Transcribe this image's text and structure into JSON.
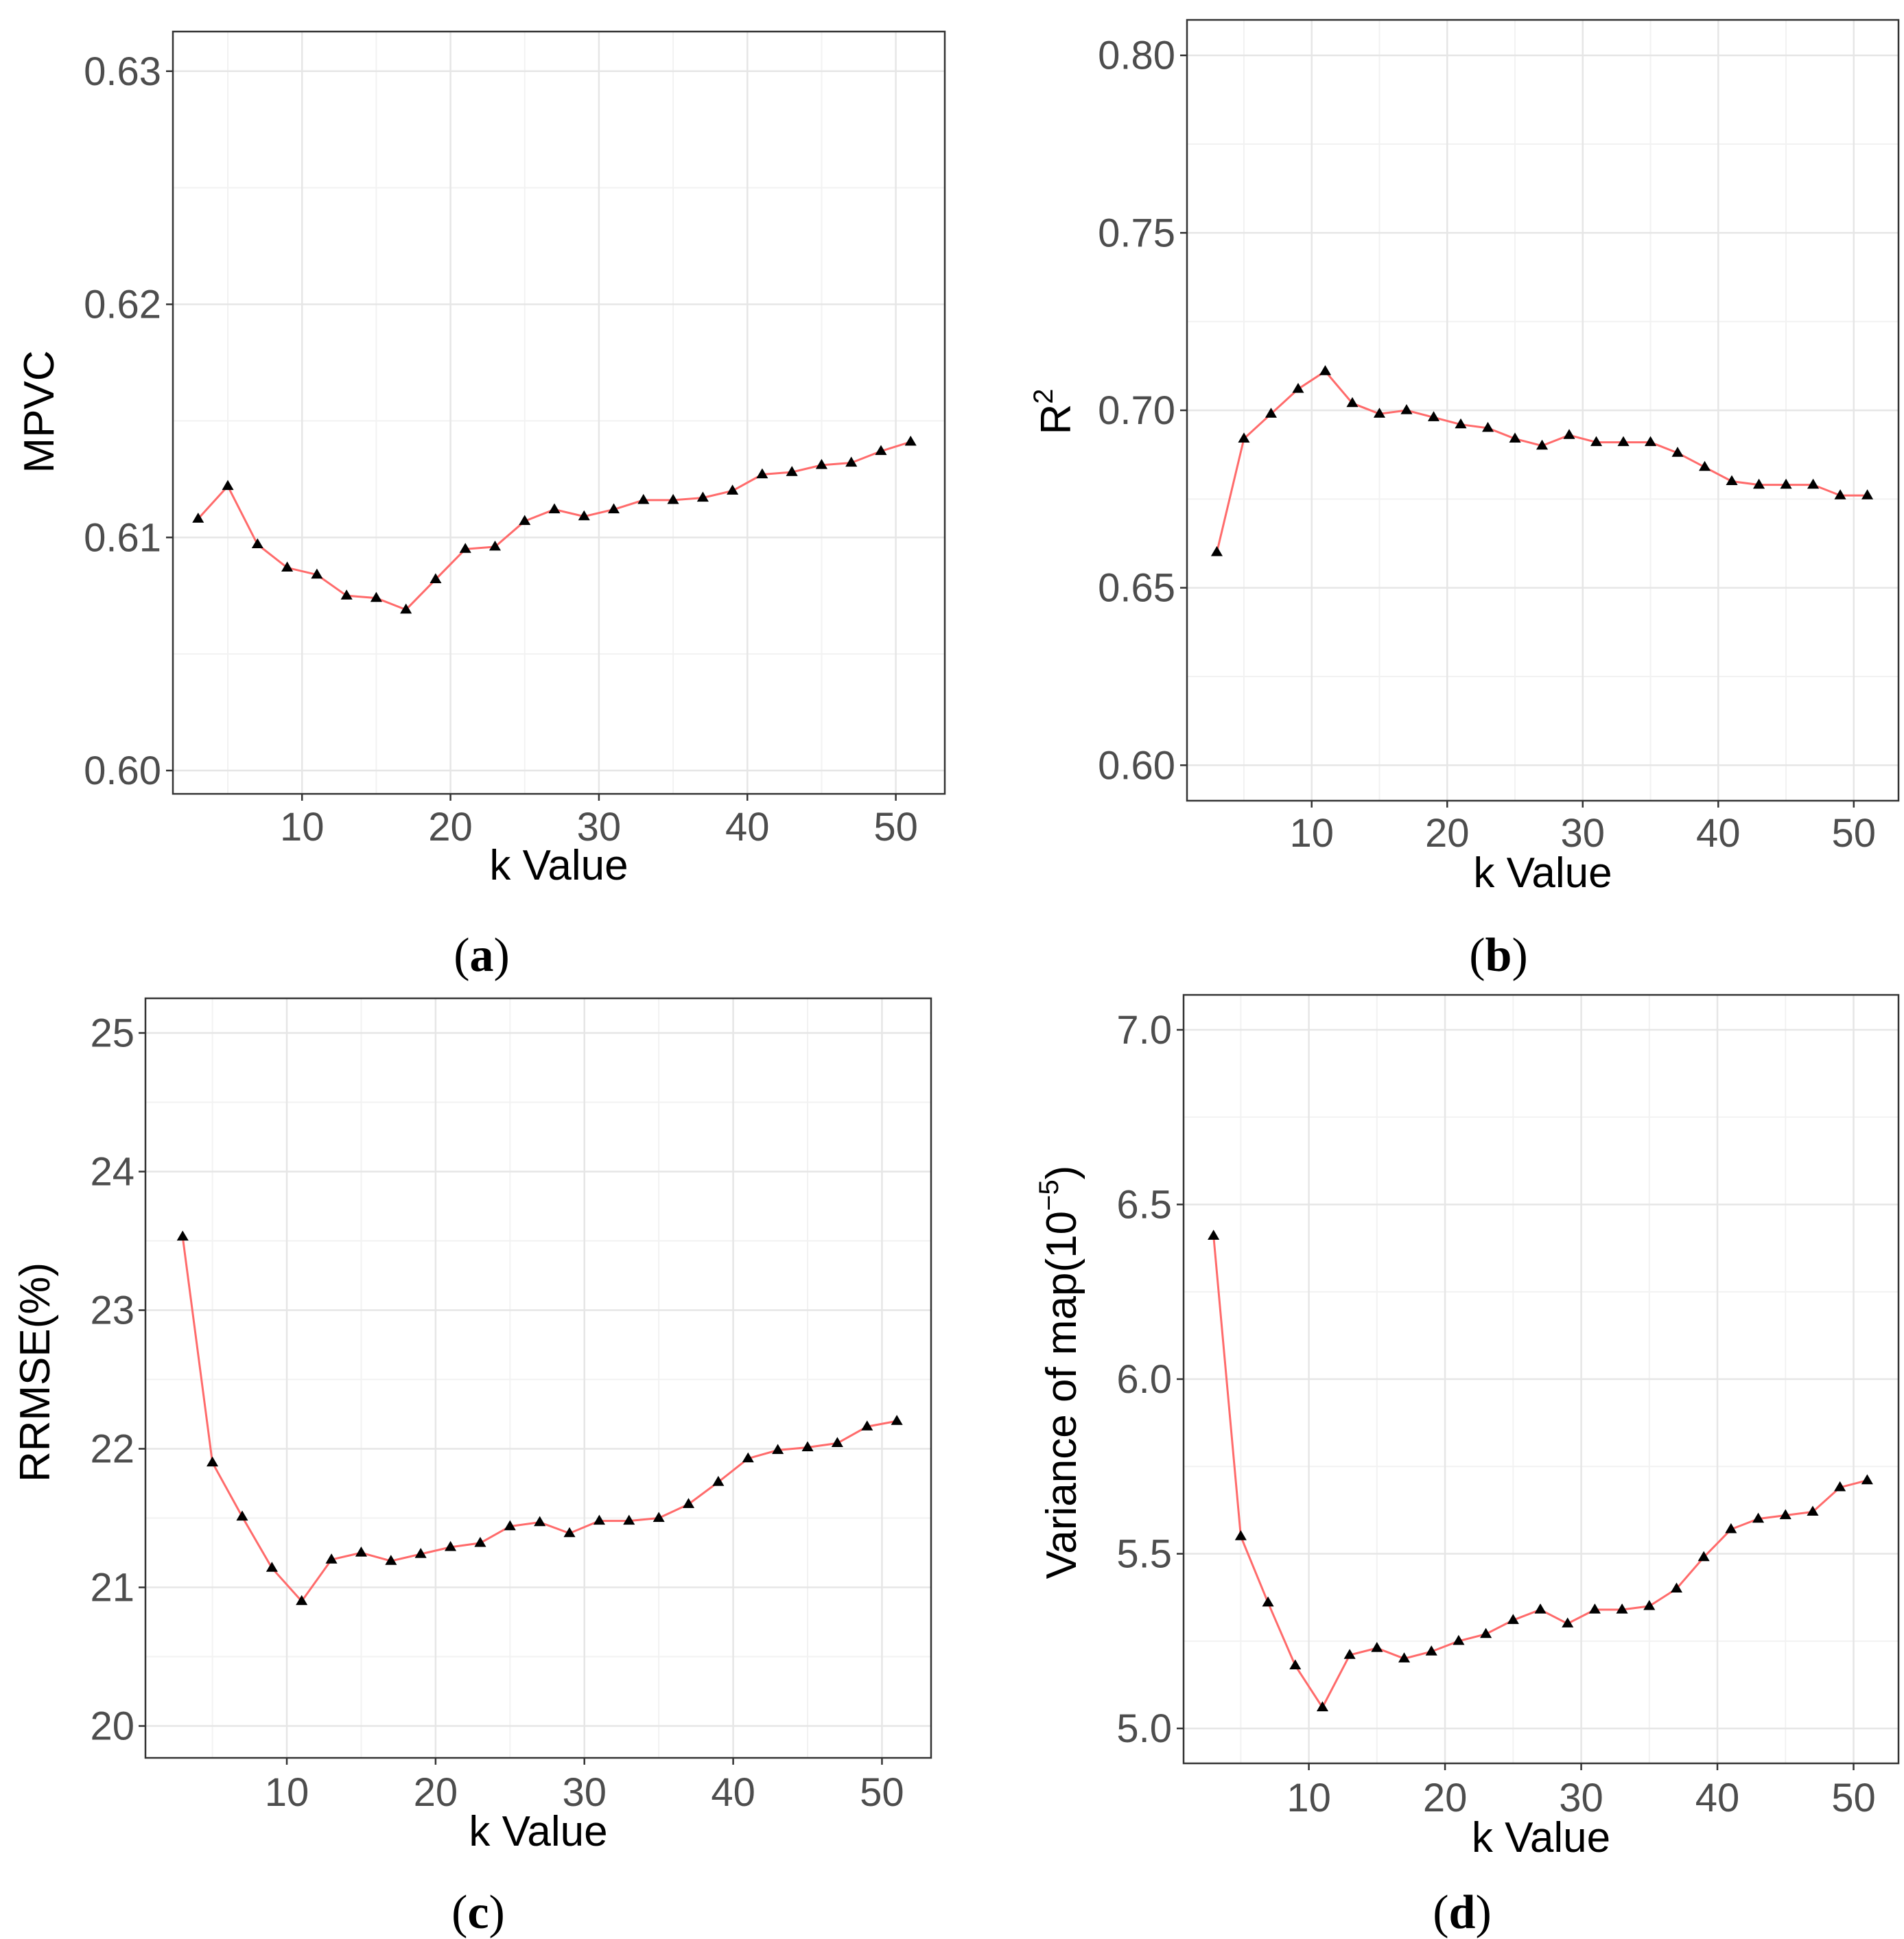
{
  "chart_data": [
    {
      "id": "a",
      "type": "line",
      "caption": "a",
      "xlabel": "k Value",
      "ylabel": "MPVC",
      "ylabel_sup": "",
      "ylabel_suffix": "",
      "xlim": [
        1.3,
        53.3
      ],
      "ylim": [
        0.599,
        0.6317
      ],
      "x_ticks": [
        10,
        20,
        30,
        40,
        50
      ],
      "y_ticks": [
        0.6,
        0.61,
        0.62,
        0.63
      ],
      "y_tick_labels": [
        "0.60",
        "0.61",
        "0.62",
        "0.63"
      ],
      "series": [
        {
          "name": "MPVC",
          "color": "#ff6b6b",
          "marker": "triangle",
          "x": [
            3,
            5,
            7,
            9,
            11,
            13,
            15,
            17,
            19,
            21,
            23,
            25,
            27,
            29,
            31,
            33,
            35,
            37,
            39,
            41,
            43,
            45,
            47,
            49,
            51
          ],
          "y": [
            0.6108,
            0.6122,
            0.6097,
            0.6087,
            0.6084,
            0.6075,
            0.6074,
            0.6069,
            0.6082,
            0.6095,
            0.6096,
            0.6107,
            0.6112,
            0.6109,
            0.6112,
            0.6116,
            0.6116,
            0.6117,
            0.612,
            0.6127,
            0.6128,
            0.6131,
            0.6132,
            0.6137,
            0.6141
          ]
        }
      ]
    },
    {
      "id": "b",
      "type": "line",
      "caption": "b",
      "xlabel": "k Value",
      "ylabel": "R",
      "ylabel_sup": "2",
      "ylabel_suffix": "",
      "xlim": [
        0.8,
        53.3
      ],
      "ylim": [
        0.59,
        0.81
      ],
      "x_ticks": [
        10,
        20,
        30,
        40,
        50
      ],
      "y_ticks": [
        0.6,
        0.65,
        0.7,
        0.75,
        0.8
      ],
      "y_tick_labels": [
        "0.60",
        "0.65",
        "0.70",
        "0.75",
        "0.80"
      ],
      "series": [
        {
          "name": "R2",
          "color": "#ff6b6b",
          "marker": "triangle",
          "x": [
            3,
            5,
            7,
            9,
            11,
            13,
            15,
            17,
            19,
            21,
            23,
            25,
            27,
            29,
            31,
            33,
            35,
            37,
            39,
            41,
            43,
            45,
            47,
            49,
            51
          ],
          "y": [
            0.66,
            0.692,
            0.699,
            0.706,
            0.711,
            0.702,
            0.699,
            0.7,
            0.698,
            0.696,
            0.695,
            0.692,
            0.69,
            0.693,
            0.691,
            0.691,
            0.691,
            0.688,
            0.684,
            0.68,
            0.679,
            0.679,
            0.679,
            0.676,
            0.676
          ]
        }
      ]
    },
    {
      "id": "c",
      "type": "line",
      "caption": "c",
      "xlabel": "k Value",
      "ylabel": "RRMSE(%)",
      "ylabel_sup": "",
      "ylabel_suffix": "",
      "xlim": [
        0.5,
        53.3
      ],
      "ylim": [
        19.77,
        25.25
      ],
      "x_ticks": [
        10,
        20,
        30,
        40,
        50
      ],
      "y_ticks": [
        20,
        21,
        22,
        23,
        24,
        25
      ],
      "y_tick_labels": [
        "20",
        "21",
        "22",
        "23",
        "24",
        "25"
      ],
      "series": [
        {
          "name": "RRMSE",
          "color": "#ff6b6b",
          "marker": "triangle",
          "x": [
            3,
            5,
            7,
            9,
            11,
            13,
            15,
            17,
            19,
            21,
            23,
            25,
            27,
            29,
            31,
            33,
            35,
            37,
            39,
            41,
            43,
            45,
            47,
            49,
            51
          ],
          "y": [
            23.53,
            21.9,
            21.51,
            21.14,
            20.9,
            21.2,
            21.25,
            21.19,
            21.24,
            21.29,
            21.32,
            21.44,
            21.47,
            21.39,
            21.48,
            21.48,
            21.5,
            21.6,
            21.76,
            21.93,
            21.99,
            22.01,
            22.04,
            22.16,
            22.2
          ]
        }
      ]
    },
    {
      "id": "d",
      "type": "line",
      "caption": "d",
      "xlabel": "k Value",
      "ylabel": "Variance of map(10",
      "ylabel_sup": "−5",
      "ylabel_suffix": ")",
      "xlim": [
        0.8,
        53.3
      ],
      "ylim": [
        4.9,
        7.1
      ],
      "x_ticks": [
        10,
        20,
        30,
        40,
        50
      ],
      "y_ticks": [
        5.0,
        5.5,
        6.0,
        6.5,
        7.0
      ],
      "y_tick_labels": [
        "5.0",
        "5.5",
        "6.0",
        "6.5",
        "7.0"
      ],
      "series": [
        {
          "name": "Variance",
          "color": "#ff6b6b",
          "marker": "triangle",
          "x": [
            3,
            5,
            7,
            9,
            11,
            13,
            15,
            17,
            19,
            21,
            23,
            25,
            27,
            29,
            31,
            33,
            35,
            37,
            39,
            41,
            43,
            45,
            47,
            49,
            51
          ],
          "y": [
            6.41,
            5.55,
            5.36,
            5.18,
            5.06,
            5.21,
            5.23,
            5.2,
            5.22,
            5.25,
            5.27,
            5.31,
            5.34,
            5.3,
            5.34,
            5.34,
            5.35,
            5.4,
            5.49,
            5.57,
            5.6,
            5.61,
            5.62,
            5.69,
            5.71
          ]
        }
      ]
    }
  ]
}
